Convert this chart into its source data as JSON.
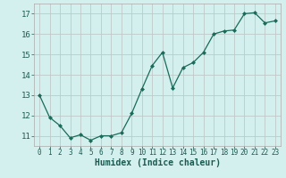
{
  "x": [
    0,
    1,
    2,
    3,
    4,
    5,
    6,
    7,
    8,
    9,
    10,
    11,
    12,
    13,
    14,
    15,
    16,
    17,
    18,
    19,
    20,
    21,
    22,
    23
  ],
  "y": [
    13.0,
    11.9,
    11.5,
    10.9,
    11.05,
    10.78,
    11.0,
    11.0,
    11.15,
    12.1,
    13.3,
    14.45,
    15.1,
    13.35,
    14.35,
    14.6,
    15.1,
    16.0,
    16.15,
    16.2,
    17.0,
    17.05,
    16.55,
    16.65
  ],
  "xlabel": "Humidex (Indice chaleur)",
  "bg_color": "#d4f0ee",
  "grid_color": "#c0c8c8",
  "line_color": "#1a6b5a",
  "marker_color": "#1a6b5a",
  "xlim": [
    -0.5,
    23.5
  ],
  "ylim": [
    10.5,
    17.5
  ],
  "yticks": [
    11,
    12,
    13,
    14,
    15,
    16,
    17
  ],
  "xticks": [
    0,
    1,
    2,
    3,
    4,
    5,
    6,
    7,
    8,
    9,
    10,
    11,
    12,
    13,
    14,
    15,
    16,
    17,
    18,
    19,
    20,
    21,
    22,
    23
  ],
  "xlabel_fontsize": 7,
  "tick_fontsize": 5.5,
  "ytick_fontsize": 6.5
}
